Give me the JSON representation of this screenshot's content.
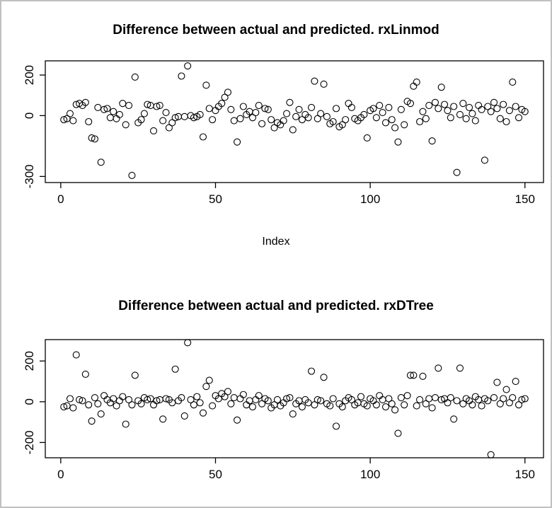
{
  "window": {
    "background": "#ffffff",
    "frame_color": "#c0c0c0"
  },
  "chart_data": [
    {
      "type": "scatter",
      "title": "Difference between actual and predicted. rxLinmod",
      "xlabel": "Index",
      "ylabel": "",
      "marker": "open-circle",
      "point_color": "#000000",
      "x_start": 1,
      "x_step": 1,
      "n": 150,
      "x_ticks": [
        0,
        50,
        100,
        150
      ],
      "y_ticks": [
        -300,
        0,
        200
      ],
      "xlim": [
        -5,
        156
      ],
      "ylim": [
        -330,
        270
      ],
      "grid": false,
      "legend": false,
      "values": [
        -20,
        -15,
        10,
        -25,
        55,
        60,
        50,
        65,
        -30,
        -110,
        -115,
        40,
        -230,
        30,
        35,
        -10,
        20,
        -15,
        5,
        60,
        -45,
        50,
        -295,
        190,
        -35,
        -20,
        10,
        55,
        50,
        -75,
        45,
        50,
        -25,
        15,
        -60,
        -35,
        -10,
        -5,
        195,
        -5,
        245,
        0,
        -10,
        -5,
        5,
        -105,
        150,
        35,
        -20,
        25,
        45,
        60,
        90,
        115,
        30,
        -25,
        -130,
        -15,
        45,
        5,
        20,
        -10,
        15,
        50,
        -40,
        35,
        30,
        -20,
        -60,
        -35,
        -45,
        -25,
        10,
        65,
        -70,
        -5,
        30,
        -20,
        5,
        -10,
        40,
        170,
        -15,
        10,
        155,
        -5,
        -40,
        -30,
        35,
        -55,
        -45,
        -20,
        60,
        40,
        -15,
        -25,
        -10,
        5,
        -110,
        25,
        35,
        -10,
        50,
        15,
        -35,
        40,
        -20,
        -60,
        -130,
        30,
        -45,
        70,
        60,
        145,
        165,
        -30,
        20,
        -15,
        50,
        -125,
        65,
        35,
        140,
        55,
        25,
        -10,
        45,
        -280,
        5,
        60,
        -15,
        40,
        10,
        -25,
        50,
        30,
        -220,
        45,
        20,
        65,
        35,
        -15,
        55,
        -30,
        25,
        165,
        45,
        -10,
        30,
        20
      ]
    },
    {
      "type": "scatter",
      "title": "Difference between actual and predicted. rxDTree",
      "xlabel": "",
      "ylabel": "",
      "marker": "open-circle",
      "point_color": "#000000",
      "x_start": 1,
      "x_step": 1,
      "n": 150,
      "x_ticks": [
        0,
        50,
        100,
        150
      ],
      "y_ticks": [
        -200,
        0,
        200
      ],
      "xlim": [
        -5,
        156
      ],
      "ylim": [
        -275,
        305
      ],
      "grid": false,
      "legend": false,
      "values": [
        -25,
        -20,
        15,
        -30,
        230,
        10,
        5,
        135,
        -15,
        -95,
        20,
        -10,
        -60,
        30,
        10,
        -5,
        15,
        -20,
        5,
        25,
        -110,
        10,
        -15,
        130,
        5,
        -10,
        20,
        10,
        15,
        -15,
        5,
        10,
        -85,
        15,
        10,
        -5,
        160,
        5,
        20,
        -70,
        290,
        10,
        -15,
        25,
        -5,
        -55,
        75,
        105,
        -20,
        30,
        15,
        40,
        25,
        50,
        -10,
        20,
        -90,
        15,
        35,
        -15,
        5,
        -25,
        10,
        30,
        -10,
        15,
        5,
        -30,
        -15,
        10,
        -20,
        -5,
        15,
        20,
        -60,
        -10,
        5,
        -25,
        10,
        -5,
        150,
        -15,
        10,
        5,
        120,
        -10,
        -20,
        15,
        -120,
        -10,
        -25,
        5,
        20,
        10,
        -15,
        -5,
        25,
        -10,
        -20,
        15,
        5,
        -15,
        30,
        10,
        -25,
        15,
        -10,
        -40,
        -155,
        20,
        -15,
        30,
        130,
        130,
        -20,
        10,
        125,
        -10,
        15,
        -30,
        20,
        165,
        10,
        15,
        -5,
        20,
        -85,
        5,
        165,
        -10,
        15,
        5,
        -15,
        25,
        10,
        -20,
        15,
        5,
        -260,
        20,
        95,
        -10,
        15,
        60,
        -5,
        20,
        100,
        -15,
        10,
        15
      ]
    }
  ]
}
